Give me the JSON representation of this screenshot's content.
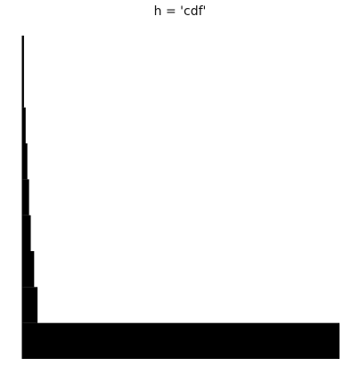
{
  "chart_data": {
    "type": "bar",
    "title": "h = 'cdf'",
    "xlabel": "",
    "ylabel": "",
    "grid": false,
    "axes_visible": false,
    "bar_color": "#000000",
    "ylim": [
      0,
      9
    ],
    "steps": [
      {
        "value": 1,
        "width": 89
      },
      {
        "value": 2,
        "width": 1
      },
      {
        "value": 3,
        "width": 1
      },
      {
        "value": 4,
        "width": 0.5
      },
      {
        "value": 5,
        "width": 0.5
      },
      {
        "value": 6,
        "width": 0.5
      },
      {
        "value": 7,
        "width": 0.5
      },
      {
        "value": 9,
        "width": 0.5
      }
    ]
  }
}
